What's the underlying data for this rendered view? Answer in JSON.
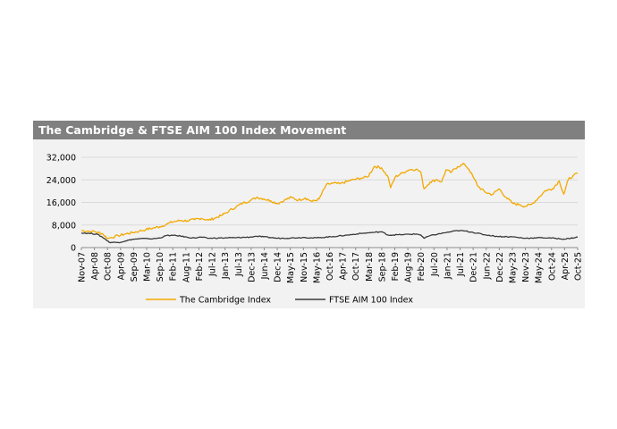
{
  "panel": {
    "title": "The Cambridge & FTSE AIM 100 Index Movement"
  },
  "chart_data": {
    "type": "line",
    "title": "The Cambridge & FTSE AIM 100 Index Movement",
    "x_tick_labels": [
      "Nov-07",
      "Apr-08",
      "Oct-08",
      "Apr-09",
      "Sep-09",
      "Mar-10",
      "Sep-10",
      "Feb-11",
      "Aug-11",
      "Feb-12",
      "Jul-12",
      "Jan-13",
      "Jul-13",
      "Dec-13",
      "Jun-14",
      "Dec-14",
      "May-15",
      "Nov-15",
      "May-16",
      "Oct-16",
      "Apr-17",
      "Oct-17",
      "Mar-18",
      "Sep-18",
      "Feb-19",
      "Aug-19",
      "Feb-20",
      "Jul-20",
      "Jan-21",
      "Jul-21",
      "Dec-21",
      "Jun-22",
      "Dec-22",
      "May-23",
      "Nov-23",
      "May-24",
      "Oct-24",
      "Apr-25",
      "Oct-25"
    ],
    "y_tick_labels": [
      "0",
      "8,000",
      "16,000",
      "24,000",
      "32,000"
    ],
    "ylim": [
      0,
      32000
    ],
    "grid": true,
    "legend_position": "bottom",
    "series": [
      {
        "name": "The Cambridge Index",
        "color": "#f2a900",
        "points": [
          [
            "2007-11-01",
            6000
          ],
          [
            "2008-02-01",
            5800
          ],
          [
            "2008-05-01",
            5600
          ],
          [
            "2008-08-01",
            5000
          ],
          [
            "2008-10-15",
            3200
          ],
          [
            "2008-12-01",
            3600
          ],
          [
            "2009-03-01",
            4200
          ],
          [
            "2009-06-01",
            4800
          ],
          [
            "2009-09-01",
            5300
          ],
          [
            "2009-12-01",
            5800
          ],
          [
            "2010-03-01",
            6400
          ],
          [
            "2010-06-01",
            6900
          ],
          [
            "2010-09-01",
            7400
          ],
          [
            "2010-12-01",
            8300
          ],
          [
            "2011-03-01",
            9200
          ],
          [
            "2011-06-01",
            9600
          ],
          [
            "2011-09-01",
            9500
          ],
          [
            "2011-12-01",
            9900
          ],
          [
            "2012-03-01",
            10400
          ],
          [
            "2012-06-01",
            9700
          ],
          [
            "2012-09-01",
            10500
          ],
          [
            "2012-12-01",
            11500
          ],
          [
            "2013-03-01",
            13000
          ],
          [
            "2013-06-01",
            14400
          ],
          [
            "2013-09-01",
            15800
          ],
          [
            "2013-12-01",
            16600
          ],
          [
            "2014-03-01",
            17800
          ],
          [
            "2014-06-01",
            17300
          ],
          [
            "2014-09-01",
            16600
          ],
          [
            "2014-12-01",
            15600
          ],
          [
            "2015-03-01",
            16800
          ],
          [
            "2015-06-01",
            17800
          ],
          [
            "2015-09-01",
            16800
          ],
          [
            "2015-12-01",
            17600
          ],
          [
            "2016-03-01",
            16300
          ],
          [
            "2016-06-01",
            17200
          ],
          [
            "2016-09-01",
            22200
          ],
          [
            "2016-12-01",
            22800
          ],
          [
            "2017-03-01",
            22600
          ],
          [
            "2017-06-01",
            23400
          ],
          [
            "2017-09-01",
            24100
          ],
          [
            "2017-12-01",
            24600
          ],
          [
            "2018-03-01",
            25000
          ],
          [
            "2018-06-01",
            28800
          ],
          [
            "2018-09-01",
            28300
          ],
          [
            "2018-12-01",
            24800
          ],
          [
            "2019-01-01",
            21200
          ],
          [
            "2019-03-01",
            25000
          ],
          [
            "2019-06-01",
            26400
          ],
          [
            "2019-09-01",
            27600
          ],
          [
            "2019-12-01",
            27800
          ],
          [
            "2020-02-01",
            26800
          ],
          [
            "2020-03-15",
            20800
          ],
          [
            "2020-06-01",
            23200
          ],
          [
            "2020-09-01",
            24100
          ],
          [
            "2020-11-01",
            23300
          ],
          [
            "2021-01-01",
            27600
          ],
          [
            "2021-03-01",
            26600
          ],
          [
            "2021-06-01",
            28700
          ],
          [
            "2021-09-01",
            29600
          ],
          [
            "2021-11-01",
            27600
          ],
          [
            "2022-01-01",
            24600
          ],
          [
            "2022-03-01",
            21600
          ],
          [
            "2022-06-01",
            19600
          ],
          [
            "2022-09-01",
            18800
          ],
          [
            "2022-12-01",
            20800
          ],
          [
            "2023-03-01",
            17800
          ],
          [
            "2023-06-01",
            15600
          ],
          [
            "2023-09-01",
            15200
          ],
          [
            "2023-11-01",
            14600
          ],
          [
            "2024-02-01",
            15300
          ],
          [
            "2024-05-01",
            17600
          ],
          [
            "2024-08-01",
            20200
          ],
          [
            "2024-11-01",
            20800
          ],
          [
            "2025-02-01",
            23600
          ],
          [
            "2025-04-01",
            18900
          ],
          [
            "2025-06-01",
            24200
          ],
          [
            "2025-08-01",
            25400
          ],
          [
            "2025-10-01",
            26300
          ]
        ]
      },
      {
        "name": "FTSE AIM 100 Index",
        "color": "#3a3a3a",
        "points": [
          [
            "2007-11-01",
            5200
          ],
          [
            "2008-03-01",
            5000
          ],
          [
            "2008-06-01",
            4700
          ],
          [
            "2008-09-01",
            3200
          ],
          [
            "2008-11-01",
            1900
          ],
          [
            "2009-03-01",
            1800
          ],
          [
            "2009-06-01",
            2300
          ],
          [
            "2009-09-01",
            2900
          ],
          [
            "2009-12-01",
            3100
          ],
          [
            "2010-03-01",
            3200
          ],
          [
            "2010-06-01",
            3100
          ],
          [
            "2010-09-01",
            3400
          ],
          [
            "2010-12-01",
            4300
          ],
          [
            "2011-03-01",
            4300
          ],
          [
            "2011-06-01",
            4100
          ],
          [
            "2011-09-01",
            3600
          ],
          [
            "2011-12-01",
            3400
          ],
          [
            "2012-03-01",
            3700
          ],
          [
            "2012-06-01",
            3300
          ],
          [
            "2012-12-01",
            3400
          ],
          [
            "2013-06-01",
            3500
          ],
          [
            "2013-12-01",
            3700
          ],
          [
            "2014-03-01",
            4000
          ],
          [
            "2014-06-01",
            3800
          ],
          [
            "2014-12-01",
            3300
          ],
          [
            "2015-06-01",
            3400
          ],
          [
            "2015-12-01",
            3600
          ],
          [
            "2016-03-01",
            3400
          ],
          [
            "2016-06-01",
            3500
          ],
          [
            "2016-12-01",
            3900
          ],
          [
            "2017-06-01",
            4400
          ],
          [
            "2017-12-01",
            5000
          ],
          [
            "2018-06-01",
            5400
          ],
          [
            "2018-09-01",
            5600
          ],
          [
            "2018-12-01",
            4400
          ],
          [
            "2019-06-01",
            4600
          ],
          [
            "2019-12-01",
            4800
          ],
          [
            "2020-02-01",
            4500
          ],
          [
            "2020-03-15",
            3300
          ],
          [
            "2020-06-01",
            4200
          ],
          [
            "2020-12-01",
            5200
          ],
          [
            "2021-03-01",
            5600
          ],
          [
            "2021-06-01",
            6000
          ],
          [
            "2021-09-01",
            5900
          ],
          [
            "2021-12-01",
            5500
          ],
          [
            "2022-06-01",
            4500
          ],
          [
            "2022-12-01",
            3900
          ],
          [
            "2023-06-01",
            3800
          ],
          [
            "2023-11-01",
            3300
          ],
          [
            "2024-06-01",
            3500
          ],
          [
            "2024-12-01",
            3300
          ],
          [
            "2025-04-01",
            3000
          ],
          [
            "2025-07-01",
            3300
          ],
          [
            "2025-10-01",
            3700
          ]
        ]
      }
    ]
  }
}
